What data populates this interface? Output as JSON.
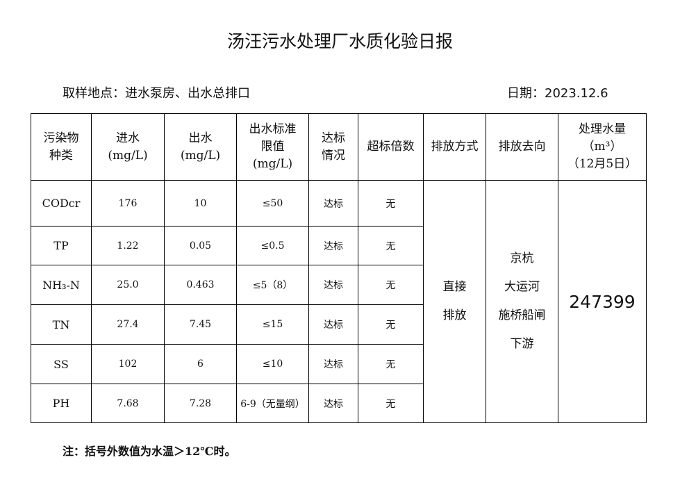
{
  "title": "汤汪污水处理厂水质化验日报",
  "location": "取样地点：进水泵房、出水总排口",
  "date": "日期：2023.12.6",
  "headers": [
    "污染物\n种类",
    "进水\n(mg/L)",
    "出水\n(mg/L)",
    "出水标准\n限值\n(mg/L)",
    "达标\n情况",
    "超标倍数",
    "排放方式",
    "排放去向",
    "处理水量\n（m³）\n（12月5日）"
  ],
  "rows": [
    {
      "name": "CODcr",
      "in": "176",
      "out": "10",
      "limit": "≤50",
      "status": "达标",
      "exceed": "无"
    },
    {
      "name": "TP",
      "in": "1.22",
      "out": "0.05",
      "limit": "≤0.5",
      "status": "达标",
      "exceed": "无"
    },
    {
      "name": "NH₃-N",
      "in": "25.0",
      "out": "0.463",
      "limit": "≤5（8）",
      "status": "达标",
      "exceed": "无"
    },
    {
      "name": "TN",
      "in": "27.4",
      "out": "7.45",
      "limit": "≤15",
      "status": "达标",
      "exceed": "无"
    },
    {
      "name": "SS",
      "in": "102",
      "out": "6",
      "limit": "≤10",
      "status": "达标",
      "exceed": "无"
    },
    {
      "name": "PH",
      "in": "7.68",
      "out": "7.28",
      "limit": "6-9（无量纲）",
      "status": "达标",
      "exceed": "无"
    }
  ],
  "discharge_method": "直接\n排放",
  "discharge_destination": "京杭\n大运河\n施桥船闸\n下游",
  "treated_volume": "247399",
  "note": "注：括号外数值为水温＞12℃时。"
}
